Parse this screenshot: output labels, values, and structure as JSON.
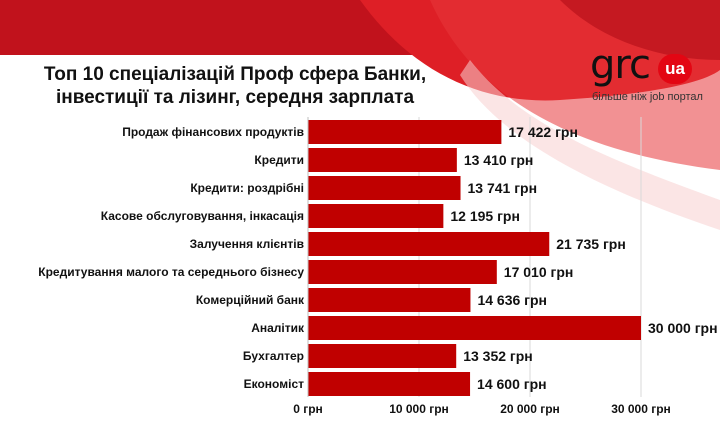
{
  "title_lines": [
    "Топ 10 спеціалізацій Проф сфера Банки,",
    "інвестиції та лізинг, середня зарплата"
  ],
  "logo": {
    "brand": "grc",
    "badge": "ua",
    "tagline": "більше ніж job портал"
  },
  "colors": {
    "bar": "#c00000",
    "accent": "#e30613"
  },
  "chart_data": {
    "type": "bar",
    "orientation": "horizontal",
    "title": "Топ 10 спеціалізацій Проф сфера Банки, інвестиції та лізинг, середня зарплата",
    "categories": [
      "Продаж фінансових продуктів",
      "Кредити",
      "Кредити: роздрібні",
      "Касове обслуговування, інкасація",
      "Залучення клієнтів",
      "Кредитування малого та середнього бізнесу",
      "Комерційний банк",
      "Аналітик",
      "Бухгалтер",
      "Економіст"
    ],
    "values": [
      17422,
      13410,
      13741,
      12195,
      21735,
      17010,
      14636,
      30000,
      13352,
      14600
    ],
    "value_labels": [
      "17 422 грн",
      "13 410 грн",
      "13 741 грн",
      "12 195 грн",
      "21 735 грн",
      "17 010 грн",
      "14 636 грн",
      "30 000 грн",
      "13 352 грн",
      "14 600 грн"
    ],
    "xlim": [
      0,
      30000
    ],
    "x_ticks": [
      0,
      10000,
      20000,
      30000
    ],
    "x_tick_labels": [
      "0 грн",
      "10 000 грн",
      "20 000 грн",
      "30 000 грн"
    ],
    "grid": true,
    "xlabel": "",
    "ylabel": ""
  }
}
